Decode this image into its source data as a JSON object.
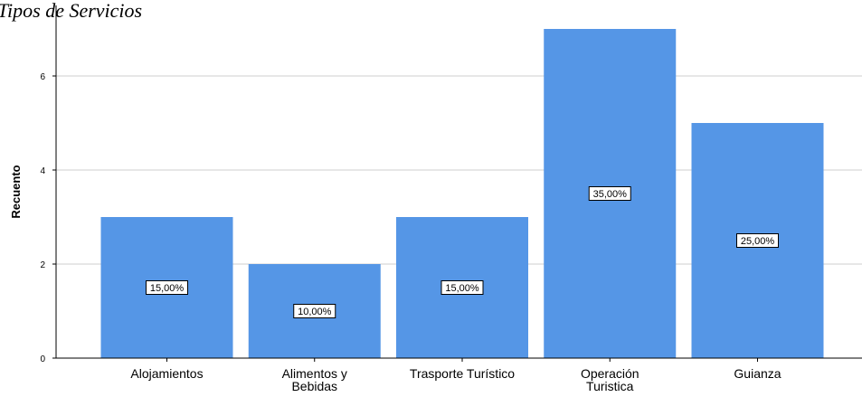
{
  "chart_data": {
    "type": "bar",
    "title": "Tipos de Servicios",
    "xlabel": "",
    "ylabel": "Recuento",
    "categories": [
      "Alojamientos",
      "Alimentos y\nBebidas",
      "Trasporte Turístico",
      "Operación\nTuristica",
      "Guianza"
    ],
    "values": [
      3,
      2,
      3,
      7,
      5
    ],
    "data_labels": [
      "15,00%",
      "10,00%",
      "15,00%",
      "35,00%",
      "25,00%"
    ],
    "ylim": [
      0,
      7.5
    ],
    "yticks": [
      0,
      2,
      4,
      6
    ],
    "grid": true,
    "legend": "none",
    "bar_color": "#5596E6"
  }
}
